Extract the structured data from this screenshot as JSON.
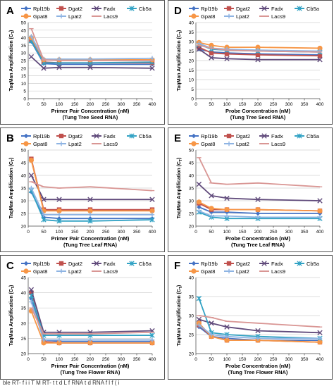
{
  "figure": {
    "caption_fragment": "ble   RT-  f   i  i  T  M  RT-  t     t d  L   f RNA   t d   RNA f      l   f ( i"
  },
  "legend": {
    "entries": [
      {
        "name": "Rpl19b",
        "color": "#4472C4",
        "marker": "diamond"
      },
      {
        "name": "Dgat2",
        "color": "#C0504D",
        "marker": "square"
      },
      {
        "name": "Fadx",
        "color": "#604A7B",
        "marker": "x"
      },
      {
        "name": "Cb5a",
        "color": "#31A2C4",
        "marker": "star"
      },
      {
        "name": "Gpat8",
        "color": "#F79646",
        "marker": "circle"
      },
      {
        "name": "Lpat2",
        "color": "#8EB4E3",
        "marker": "plus"
      },
      {
        "name": "Lacs9",
        "color": "#D99694",
        "marker": "dash"
      }
    ]
  },
  "chart_data": [
    {
      "panel": "A",
      "type": "line",
      "xlabel": "Primer Pair Concentration (nM)",
      "xlabel2": "(Tung Tree Seed RNA)",
      "ylabel": "TaqMan Amplification (C_T)",
      "xlim": [
        0,
        400
      ],
      "ylim": [
        0,
        50
      ],
      "ytick_step": 5,
      "xticks": [
        0,
        50,
        100,
        150,
        200,
        250,
        300,
        350,
        400
      ],
      "x": [
        10,
        50,
        100,
        200,
        400
      ],
      "grid": "horizontal",
      "series": [
        {
          "name": "Rpl19b",
          "values": [
            37.5,
            23.0,
            22.5,
            22.5,
            22.5
          ]
        },
        {
          "name": "Dgat2",
          "values": [
            38.5,
            24.0,
            23.5,
            23.5,
            23.5
          ]
        },
        {
          "name": "Fadx",
          "values": [
            27.5,
            20.0,
            20.5,
            20.5,
            20.0
          ]
        },
        {
          "name": "Cb5a",
          "values": [
            38.0,
            23.5,
            23.5,
            23.5,
            24.0
          ]
        },
        {
          "name": "Gpat8",
          "values": [
            40.0,
            25.5,
            25.5,
            25.5,
            25.5
          ]
        },
        {
          "name": "Lpat2",
          "values": [
            41.0,
            26.0,
            26.0,
            26.0,
            26.5
          ]
        },
        {
          "name": "Lacs9",
          "values": [
            46.0,
            25.5,
            25.0,
            25.0,
            25.0
          ]
        }
      ]
    },
    {
      "panel": "D",
      "type": "line",
      "xlabel": "Probe Concentration (nM)",
      "xlabel2": "(Tung Tree Seed RNA)",
      "ylabel": "TaqMan Amplification (C_T)",
      "xlim": [
        0,
        400
      ],
      "ylim": [
        0,
        40
      ],
      "ytick_step": 5,
      "xticks": [
        0,
        50,
        100,
        150,
        200,
        250,
        300,
        350,
        400
      ],
      "x": [
        10,
        50,
        100,
        200,
        400
      ],
      "grid": "horizontal",
      "series": [
        {
          "name": "Rpl19b",
          "values": [
            26.0,
            24.5,
            24.0,
            23.5,
            23.0
          ]
        },
        {
          "name": "Dgat2",
          "values": [
            27.0,
            24.0,
            23.5,
            23.0,
            22.5
          ]
        },
        {
          "name": "Fadx",
          "values": [
            26.0,
            21.5,
            21.0,
            20.5,
            20.5
          ]
        },
        {
          "name": "Cb5a",
          "values": [
            28.5,
            26.0,
            25.5,
            25.0,
            24.5
          ]
        },
        {
          "name": "Gpat8",
          "values": [
            29.5,
            28.0,
            27.0,
            27.0,
            26.5
          ]
        },
        {
          "name": "Lpat2",
          "values": [
            29.0,
            26.5,
            26.0,
            25.5,
            25.0
          ]
        },
        {
          "name": "Lacs9",
          "values": [
            28.0,
            26.5,
            25.5,
            25.0,
            24.5
          ]
        }
      ]
    },
    {
      "panel": "B",
      "type": "line",
      "xlabel": "Primer Pair Concentration (nM)",
      "xlabel2": "(Tung Tree Leaf RNA)",
      "ylabel": "TaqMan Amplification (C_T)",
      "xlim": [
        0,
        400
      ],
      "ylim": [
        20,
        50
      ],
      "ytick_step": 5,
      "xticks": [
        0,
        50,
        100,
        150,
        200,
        250,
        300,
        350,
        400
      ],
      "x": [
        10,
        50,
        100,
        200,
        400
      ],
      "grid": "horizontal",
      "series": [
        {
          "name": "Rpl19b",
          "values": [
            33.5,
            23.5,
            23.0,
            23.0,
            23.0
          ]
        },
        {
          "name": "Dgat2",
          "values": [
            46.5,
            26.5,
            26.5,
            26.5,
            26.5
          ]
        },
        {
          "name": "Fadx",
          "values": [
            40.0,
            30.5,
            30.5,
            30.5,
            30.5
          ]
        },
        {
          "name": "Cb5a",
          "values": [
            34.0,
            22.5,
            22.0,
            22.0,
            22.5
          ]
        },
        {
          "name": "Gpat8",
          "values": [
            46.0,
            26.0,
            26.0,
            26.0,
            26.0
          ]
        },
        {
          "name": "Lpat2",
          "values": [
            35.0,
            24.5,
            24.5,
            24.5,
            24.5
          ]
        },
        {
          "name": "Lacs9",
          "values": [
            37.5,
            35.5,
            35.0,
            35.5,
            34.0
          ]
        }
      ]
    },
    {
      "panel": "E",
      "type": "line",
      "xlabel": "Probe Concentration (nM)",
      "xlabel2": "(Tung Tree Leaf RNA)",
      "ylabel": "TaqMan Amplification (C_T)",
      "xlim": [
        0,
        400
      ],
      "ylim": [
        20,
        50
      ],
      "ytick_step": 5,
      "xticks": [
        0,
        50,
        100,
        150,
        200,
        250,
        300,
        350,
        400
      ],
      "x": [
        10,
        50,
        100,
        200,
        400
      ],
      "grid": "horizontal",
      "series": [
        {
          "name": "Rpl19b",
          "values": [
            27.5,
            25.5,
            25.5,
            25.0,
            25.0
          ]
        },
        {
          "name": "Dgat2",
          "values": [
            29.0,
            26.5,
            26.5,
            26.5,
            26.0
          ]
        },
        {
          "name": "Fadx",
          "values": [
            36.5,
            32.0,
            31.0,
            30.5,
            30.0
          ]
        },
        {
          "name": "Cb5a",
          "values": [
            25.5,
            23.5,
            23.0,
            23.0,
            23.0
          ]
        },
        {
          "name": "Gpat8",
          "values": [
            29.5,
            27.0,
            26.5,
            26.5,
            26.0
          ]
        },
        {
          "name": "Lpat2",
          "values": [
            26.0,
            24.0,
            24.0,
            23.5,
            23.5
          ]
        },
        {
          "name": "Lacs9",
          "values": [
            47.0,
            37.0,
            36.5,
            37.0,
            35.5
          ]
        }
      ]
    },
    {
      "panel": "C",
      "type": "line",
      "xlabel": "Primer Pair Concentration (nM)",
      "xlabel2": "(Tung Tree Flower RNA)",
      "ylabel": "TaqMan Amplification (C_T)",
      "xlim": [
        0,
        400
      ],
      "ylim": [
        20,
        45
      ],
      "ytick_step": 5,
      "xticks": [
        0,
        50,
        100,
        150,
        200,
        250,
        300,
        350,
        400
      ],
      "x": [
        10,
        50,
        100,
        200,
        400
      ],
      "grid": "horizontal",
      "series": [
        {
          "name": "Rpl19b",
          "values": [
            38.0,
            24.5,
            24.0,
            24.0,
            24.0
          ]
        },
        {
          "name": "Dgat2",
          "values": [
            40.0,
            24.0,
            23.5,
            23.5,
            23.5
          ]
        },
        {
          "name": "Fadx",
          "values": [
            41.0,
            27.0,
            27.0,
            27.0,
            27.5
          ]
        },
        {
          "name": "Cb5a",
          "values": [
            39.0,
            26.0,
            26.0,
            26.0,
            26.0
          ]
        },
        {
          "name": "Gpat8",
          "values": [
            34.0,
            23.5,
            23.5,
            23.5,
            23.5
          ]
        },
        {
          "name": "Lpat2",
          "values": [
            37.0,
            24.5,
            24.5,
            24.5,
            24.5
          ]
        },
        {
          "name": "Lacs9",
          "values": [
            35.0,
            26.5,
            26.5,
            26.5,
            27.0
          ]
        }
      ]
    },
    {
      "panel": "F",
      "type": "line",
      "xlabel": "Probe Concentration (nM)",
      "xlabel2": "(Tung Tree Flower RNA)",
      "ylabel": "TaqMan Amplification (C_T)",
      "xlim": [
        0,
        400
      ],
      "ylim": [
        20,
        40
      ],
      "ytick_step": 5,
      "xticks": [
        0,
        50,
        100,
        150,
        200,
        250,
        300,
        350,
        400
      ],
      "x": [
        10,
        50,
        100,
        200,
        400
      ],
      "grid": "horizontal",
      "series": [
        {
          "name": "Rpl19b",
          "values": [
            27.0,
            24.5,
            24.0,
            23.5,
            23.5
          ]
        },
        {
          "name": "Dgat2",
          "values": [
            27.5,
            24.5,
            23.5,
            23.5,
            23.0
          ]
        },
        {
          "name": "Fadx",
          "values": [
            29.0,
            28.0,
            27.0,
            26.0,
            25.5
          ]
        },
        {
          "name": "Cb5a",
          "values": [
            34.5,
            25.5,
            25.0,
            24.5,
            24.0
          ]
        },
        {
          "name": "Gpat8",
          "values": [
            28.0,
            24.5,
            23.5,
            23.5,
            23.0
          ]
        },
        {
          "name": "Lpat2",
          "values": [
            27.5,
            25.0,
            24.5,
            24.0,
            24.0
          ]
        },
        {
          "name": "Lacs9",
          "values": [
            30.0,
            29.5,
            28.5,
            28.0,
            27.0
          ]
        }
      ]
    }
  ]
}
